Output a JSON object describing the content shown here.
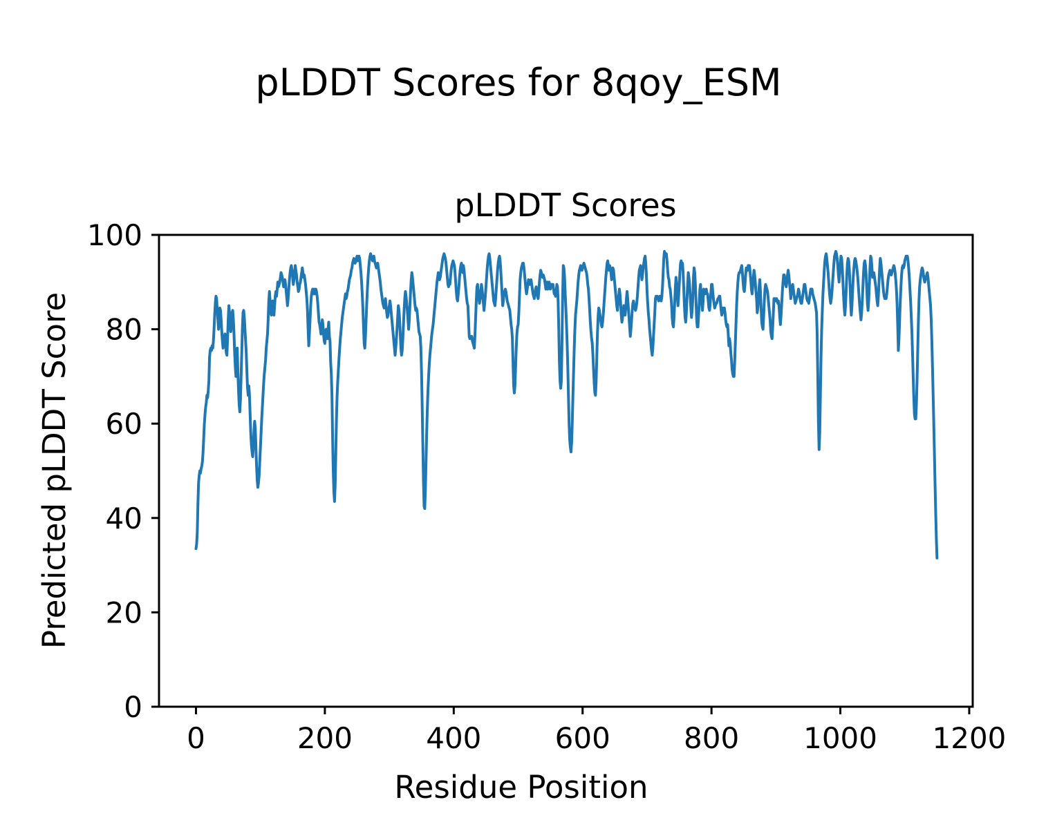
{
  "figure": {
    "title": "pLDDT Scores for 8qoy_ESM"
  },
  "chart_data": {
    "type": "line",
    "title": "pLDDT Scores",
    "xlabel": "Residue Position",
    "ylabel": "Predicted pLDDT Score",
    "xlim": [
      -57.4,
      1205.4
    ],
    "ylim": [
      0,
      100
    ],
    "xticks": [
      0,
      200,
      400,
      600,
      800,
      1000,
      1200
    ],
    "yticks": [
      0,
      20,
      40,
      60,
      80,
      100
    ],
    "grid": false,
    "legend": "none",
    "line_color": "#1f77b4",
    "series": [
      {
        "name": "pLDDT",
        "x_start": 0,
        "x_step": 1,
        "values": [
          33.5,
          34.5,
          37,
          43,
          47.5,
          49,
          50,
          49.5,
          50.5,
          51,
          52,
          54,
          57,
          60,
          62,
          63.5,
          64.5,
          66,
          65.5,
          67,
          69,
          74,
          75.5,
          76,
          75.5,
          76.5,
          76,
          77.5,
          80,
          83,
          85.5,
          87,
          86.5,
          84,
          82,
          80,
          81.5,
          84.5,
          84,
          82,
          79.5,
          77.5,
          76,
          77.5,
          78.5,
          79,
          77,
          75,
          74.5,
          78,
          82,
          85,
          83.5,
          81,
          79.5,
          81,
          83.5,
          84,
          82,
          79,
          75,
          72,
          70,
          73,
          76,
          71,
          67,
          64,
          62.5,
          65,
          70,
          75,
          80,
          83.5,
          84,
          82.5,
          80,
          77.5,
          75,
          71,
          67.5,
          66,
          68,
          66,
          62,
          58,
          55.5,
          54,
          53,
          55,
          58.5,
          60.5,
          59,
          55,
          51,
          48,
          46.5,
          47.5,
          49,
          52,
          55,
          58,
          61,
          63.5,
          66,
          68.5,
          70.5,
          72,
          73.5,
          76,
          77.5,
          79,
          82,
          86,
          88,
          86,
          83.5,
          83,
          84.5,
          86,
          84.5,
          83,
          85,
          87,
          88,
          87,
          88.5,
          90,
          89,
          89.5,
          90,
          91,
          92,
          91.5,
          91,
          90,
          89,
          90,
          90.5,
          89.5,
          88,
          86.5,
          85,
          86.5,
          88.5,
          90.5,
          92,
          93,
          93.5,
          92.5,
          91,
          89.5,
          90.5,
          92,
          93.5,
          92.5,
          91.5,
          90,
          89,
          88,
          88.5,
          89.5,
          90,
          91,
          92,
          93,
          92,
          91,
          91.5,
          90.5,
          89.5,
          88,
          86.5,
          84,
          80,
          76.5,
          79,
          82,
          85,
          87,
          88,
          88.5,
          87.5,
          88.5,
          87.5,
          88,
          88.5,
          88,
          87,
          85.5,
          83.5,
          81.5,
          81,
          80,
          79,
          80.5,
          82,
          81,
          79,
          77.5,
          77,
          78.5,
          80,
          79,
          78,
          80,
          81.5,
          78.5,
          77.5,
          73,
          70.5,
          66,
          57,
          50,
          45.5,
          43.5,
          47,
          54,
          61,
          66,
          69,
          71.5,
          74,
          76,
          78,
          79.5,
          81,
          82.5,
          83.5,
          84.5,
          85.5,
          86.5,
          87.5,
          86.5,
          87,
          88,
          88.5,
          89.5,
          90.5,
          91,
          91.5,
          92.5,
          93,
          94,
          94.5,
          95,
          94.5,
          94,
          94.5,
          95,
          95.5,
          94.5,
          95,
          95.5,
          95,
          93.5,
          92,
          90,
          87.5,
          84.5,
          80.5,
          77,
          76,
          78.5,
          82,
          85.5,
          88.5,
          91,
          93,
          94.5,
          95.5,
          96,
          95.5,
          95,
          94.5,
          95,
          95.5,
          94.5,
          94,
          93.5,
          93,
          93.5,
          94,
          93,
          92,
          91,
          90,
          88.5,
          87.5,
          86.5,
          85.5,
          85,
          84.5,
          85.5,
          86.5,
          85,
          83.5,
          82.5,
          83,
          84,
          85,
          86,
          85,
          83.5,
          82,
          80.5,
          79,
          77.5,
          76,
          74.5,
          76,
          78,
          80,
          82.5,
          85,
          84,
          82,
          79,
          76,
          74.5,
          75.5,
          78,
          81,
          84,
          86.5,
          88,
          87,
          85.5,
          84,
          82,
          80,
          82,
          85,
          88,
          90.5,
          92,
          91,
          89.5,
          88,
          86.5,
          85,
          84,
          84.5,
          84,
          82.5,
          81,
          79.5,
          79,
          78.5,
          76,
          71,
          64,
          56,
          48,
          42.5,
          42,
          46,
          52,
          58,
          63,
          67,
          70,
          72.5,
          74.5,
          76,
          77.5,
          79,
          80,
          81,
          82.5,
          84,
          85.5,
          87,
          88.5,
          90,
          91,
          92,
          91.5,
          90.5,
          91,
          92,
          93,
          94,
          95,
          95.5,
          96,
          95.5,
          95,
          94,
          92.5,
          91,
          89.5,
          89,
          90,
          89.5,
          91,
          92.5,
          93.5,
          94,
          94.5,
          94,
          93.5,
          92,
          90,
          88,
          86.5,
          86,
          87.5,
          89,
          91,
          92.5,
          93.5,
          94,
          93,
          92,
          93.5,
          92.5,
          91,
          89.5,
          88,
          86.5,
          85.5,
          85,
          82,
          78.5,
          78,
          78.5,
          78,
          78.5,
          77.5,
          77,
          76.5,
          76,
          79,
          82.5,
          86,
          89,
          89.5,
          88,
          86.5,
          85.5,
          86.5,
          88,
          89.5,
          88.5,
          87,
          85.5,
          84,
          85.5,
          87,
          89,
          91,
          93,
          94.5,
          95.5,
          96,
          95,
          93.5,
          92,
          90.5,
          89,
          87.5,
          86,
          85.5,
          85,
          86.5,
          88.5,
          90.5,
          92.5,
          94,
          95,
          95.5,
          94.5,
          92.5,
          90,
          87.5,
          85,
          86,
          87.5,
          88,
          88.5,
          88,
          87,
          86,
          85.5,
          85,
          84.5,
          84,
          82.5,
          81,
          80,
          78,
          73,
          68,
          66.5,
          68,
          72,
          76,
          79,
          80.5,
          81,
          83.5,
          87,
          90.5,
          92,
          93,
          93.5,
          94,
          94,
          93,
          91.5,
          90,
          88.5,
          87.5,
          88.5,
          89.5,
          90.5,
          90,
          89.5,
          90,
          90.5,
          89.5,
          88.5,
          87.5,
          87,
          86.5,
          87.5,
          88.5,
          89,
          88,
          87,
          86.5,
          88,
          90,
          91.5,
          92.5,
          92,
          91.5,
          91,
          91.5,
          91,
          90.5,
          89.5,
          88.5,
          89,
          90,
          88.5,
          89.5,
          90,
          89.5,
          88.5,
          89,
          89.5,
          89,
          89.5,
          88.5,
          87.5,
          87.5,
          87,
          88,
          89.5,
          89,
          86,
          80,
          73,
          69,
          67.5,
          69,
          77,
          87,
          93.5,
          93,
          91,
          87.5,
          84.5,
          81,
          77,
          72,
          66,
          60,
          56.5,
          55,
          54,
          56,
          60.5,
          66,
          71,
          76,
          80,
          83,
          84.5,
          86,
          88,
          90,
          91.5,
          92.5,
          93,
          93.5,
          93,
          92.5,
          93,
          93.5,
          94,
          93.5,
          93,
          92.5,
          92,
          91,
          89.5,
          88.5,
          86.5,
          84,
          81.5,
          79.5,
          78,
          77,
          74.5,
          71.5,
          68.5,
          66.5,
          66,
          69,
          74,
          79,
          82.5,
          84.5,
          84,
          83,
          82,
          81,
          80.5,
          81.5,
          83,
          85,
          87,
          89,
          91,
          92.5,
          94,
          94.5,
          93.5,
          92.5,
          93.5,
          93,
          92,
          90.5,
          92,
          93,
          92.5,
          91,
          89.5,
          88,
          86.5,
          85,
          84,
          85.5,
          87,
          88.5,
          87.5,
          85.5,
          83,
          81.5,
          82.5,
          84,
          85,
          84,
          83,
          84.5,
          86.5,
          88,
          86.5,
          84.5,
          82.5,
          80.5,
          78.5,
          80,
          82,
          84,
          85.5,
          86,
          85,
          84.5,
          84,
          84.5,
          85.5,
          87,
          89,
          91,
          92.5,
          93,
          93.5,
          92.5,
          90.5,
          91.5,
          93,
          94,
          95,
          95.5,
          94,
          91.5,
          88,
          85.5,
          83.5,
          82,
          80,
          78.5,
          77,
          75.5,
          74.5,
          76,
          78.5,
          81,
          83.5,
          86.5,
          87,
          86.5,
          87,
          86.5,
          86,
          86.5,
          87,
          86.5,
          86,
          87,
          89,
          92,
          95,
          96.5,
          96,
          95.5,
          96,
          94.5,
          92.5,
          91,
          90.5,
          89,
          88.5,
          87,
          85.5,
          82.5,
          81,
          80.5,
          83,
          86,
          89,
          91,
          89.5,
          87,
          85,
          87,
          89.5,
          92,
          94,
          94.5,
          93.5,
          94,
          92,
          88.5,
          85,
          82.5,
          81.5,
          83.5,
          86.5,
          89.5,
          92,
          91,
          89.5,
          87,
          84.5,
          82.5,
          84,
          86.5,
          91,
          93,
          92,
          89.5,
          86,
          82,
          80.5,
          80.5,
          83,
          85.5,
          88.5,
          89.5,
          87.5,
          85.5,
          84,
          86,
          88.5,
          88,
          87.5,
          88,
          88.5,
          87.5,
          87.5,
          86,
          84.5,
          84,
          85.5,
          87.5,
          89.5,
          89.5,
          88,
          86.5,
          85.5,
          84.5,
          85,
          85.5,
          85.5,
          86,
          86.5,
          86.5,
          87,
          87,
          85.5,
          84,
          83,
          83.5,
          84.5,
          84.5,
          84.5,
          83.5,
          82,
          81,
          80.5,
          81,
          79,
          76.5,
          78,
          77,
          75,
          73.5,
          71.5,
          70.5,
          70,
          70,
          73,
          77,
          81,
          85,
          88,
          90,
          91.5,
          92,
          92,
          92.5,
          93,
          93.5,
          92,
          90,
          88.5,
          88,
          89.5,
          91.5,
          93,
          92.5,
          92.5,
          93.5,
          93,
          93.5,
          92,
          90.5,
          88.5,
          87.5,
          89,
          91,
          92.5,
          91.5,
          90,
          88,
          86.5,
          83.5,
          84.5,
          86.5,
          89,
          90.5,
          88,
          84.5,
          81.5,
          80.5,
          80,
          83,
          86,
          88.5,
          89.5,
          89,
          88.5,
          88,
          86.5,
          85,
          83.5,
          82,
          79.5,
          78.5,
          78,
          80.5,
          83.5,
          86.5,
          86.5,
          86,
          86,
          86.5,
          86,
          85.5,
          86,
          84.5,
          82.5,
          81,
          83,
          85.5,
          88,
          90,
          91.5,
          91.5,
          90.5,
          89.5,
          89,
          90,
          91.5,
          92.5,
          91.5,
          90,
          88.5,
          86.5,
          87.5,
          88.5,
          89.5,
          88.5,
          87.5,
          86.5,
          85.5,
          86,
          86.5,
          87,
          87.5,
          88.5,
          88,
          87,
          86,
          85.5,
          85.5,
          86.5,
          87.5,
          88.5,
          89.5,
          89.5,
          88.5,
          87.5,
          86.5,
          86,
          86,
          85.5,
          86.5,
          87.5,
          88.5,
          88.5,
          88.5,
          87.5,
          87,
          86.5,
          86,
          85.5,
          84.5,
          83.5,
          79,
          70,
          60,
          54.5,
          58,
          66,
          74,
          80,
          84,
          87.5,
          90,
          92.5,
          94.5,
          95.5,
          96,
          95,
          93.5,
          92,
          90,
          88,
          86.5,
          85.5,
          86.5,
          88,
          90,
          92,
          94,
          95.5,
          96,
          96.5,
          96,
          95,
          93.5,
          91.5,
          90,
          92,
          94,
          95.5,
          95,
          93,
          90,
          87,
          84.5,
          83,
          85,
          88,
          91.5,
          94,
          95,
          94.5,
          92.5,
          89.5,
          85.5,
          83,
          85,
          88,
          91,
          93,
          94.5,
          95,
          94.5,
          93.5,
          92.5,
          91,
          89,
          87,
          85,
          83.5,
          82,
          83.5,
          86,
          89,
          92,
          94,
          94.5,
          93.5,
          91.5,
          88.5,
          85.5,
          84,
          86,
          89.5,
          93,
          95.5,
          95,
          93,
          91,
          91.5,
          92,
          91,
          90,
          89,
          87.5,
          86,
          85,
          87,
          90,
          93,
          95,
          94,
          92.5,
          91,
          89.5,
          88,
          87,
          86.5,
          86.5,
          86.5,
          87.5,
          89,
          90.5,
          91.5,
          92,
          92.5,
          92,
          91.5,
          92,
          92.5,
          93,
          93.5,
          93,
          92,
          90.5,
          88.5,
          85.5,
          81,
          75.5,
          78,
          82,
          86,
          89,
          91.5,
          93,
          93.5,
          93,
          93.5,
          94.5,
          95,
          95.5,
          95,
          95.5,
          94.5,
          93,
          91,
          88.5,
          86,
          83,
          79.5,
          75,
          70,
          65.5,
          62,
          61,
          61,
          64,
          69,
          75,
          81,
          86,
          89,
          90.5,
          91.5,
          92.5,
          93,
          92.5,
          91.5,
          90.5,
          90,
          90.5,
          91,
          91.5,
          92,
          91,
          89.5,
          88,
          86.5,
          85,
          82,
          77.5,
          72,
          66,
          60,
          53.5,
          47,
          41,
          35.5,
          31.5
        ]
      }
    ]
  }
}
